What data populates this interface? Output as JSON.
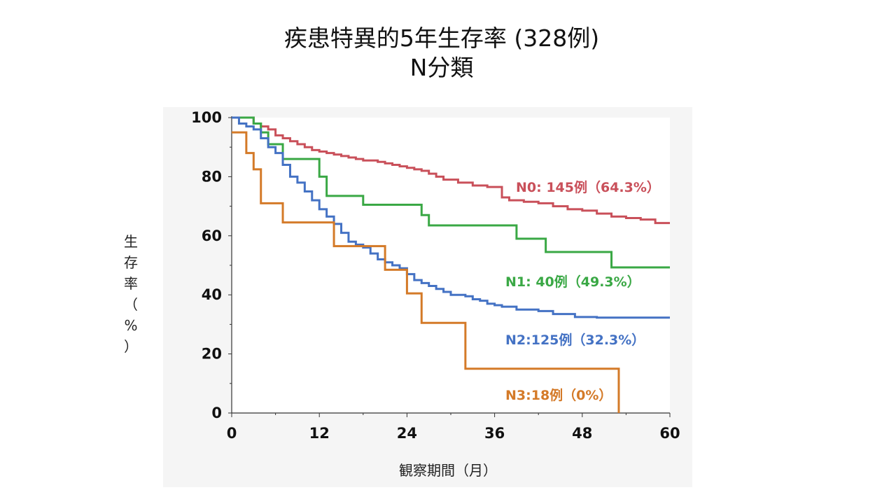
{
  "title": {
    "line1": "疾患特異的5年生存率 (328例)",
    "line2": "N分類"
  },
  "chart_data": {
    "type": "line",
    "step": true,
    "xlabel": "観察期間（月）",
    "ylabel": [
      "生",
      "存",
      "率",
      "（",
      "%",
      "）"
    ],
    "xlim": [
      0,
      60
    ],
    "ylim": [
      0,
      100
    ],
    "xticks": [
      "0",
      "12",
      "24",
      "36",
      "48",
      "60"
    ],
    "yticks": [
      "0",
      "20",
      "40",
      "60",
      "80",
      "100"
    ],
    "grid": false,
    "series": [
      {
        "name": "N0: 145例（64.3%）",
        "color": "#c9505a",
        "x": [
          0,
          3,
          4,
          5,
          6,
          7,
          8,
          9,
          10,
          11,
          12,
          13,
          14,
          15,
          16,
          17,
          18,
          20,
          21,
          22,
          23,
          24,
          25,
          26,
          27,
          28,
          29,
          31,
          33,
          35,
          37,
          38,
          40,
          42,
          44,
          46,
          48,
          50,
          52,
          54,
          56,
          58,
          60
        ],
        "y": [
          100,
          98,
          97,
          96,
          94,
          93,
          92,
          91,
          90,
          89,
          88.5,
          88,
          87.5,
          87,
          86.5,
          86,
          85.5,
          85,
          84.5,
          84,
          83.5,
          83,
          82.5,
          82,
          81,
          80,
          79,
          78,
          77,
          76.5,
          73,
          72,
          71.5,
          71,
          70,
          69,
          68.5,
          67.5,
          66.5,
          66,
          65.5,
          64.3,
          64.3
        ]
      },
      {
        "name": "N1: 40例（49.3%）",
        "color": "#3aa845",
        "x": [
          0,
          3,
          4,
          5,
          7,
          12,
          13,
          18,
          26,
          27,
          39,
          43,
          52,
          60
        ],
        "y": [
          100,
          98,
          95,
          91,
          86,
          80,
          73.5,
          70.5,
          67,
          63.5,
          59,
          54.5,
          49.3,
          49.3
        ]
      },
      {
        "name": "N2:125例（32.3%）",
        "color": "#4472c4",
        "x": [
          0,
          1,
          2,
          3,
          4,
          5,
          6,
          7,
          8,
          9,
          10,
          11,
          12,
          13,
          14,
          15,
          16,
          17,
          18,
          19,
          20,
          21,
          22,
          23,
          24,
          25,
          26,
          27,
          28,
          29,
          30,
          32,
          33,
          34,
          35,
          36,
          37,
          39,
          42,
          44,
          47,
          50,
          60
        ],
        "y": [
          100,
          98,
          97,
          96,
          93,
          90,
          88,
          84,
          80,
          78,
          75,
          72,
          69,
          66.5,
          64,
          61,
          58,
          57,
          56,
          54,
          52,
          51,
          50,
          49,
          47,
          45,
          44,
          43,
          42,
          41,
          40,
          39.5,
          38.5,
          38,
          37,
          36.5,
          36,
          35,
          34.5,
          33.5,
          32.5,
          32.3,
          32.3
        ]
      },
      {
        "name": "N3:18例（0%）",
        "color": "#d47a28",
        "x": [
          0,
          2,
          3,
          4,
          7,
          14,
          21,
          24,
          26,
          32,
          53
        ],
        "y": [
          95,
          88,
          82.5,
          71,
          64.5,
          56.5,
          48.5,
          40.5,
          30.5,
          15,
          0
        ]
      }
    ]
  }
}
